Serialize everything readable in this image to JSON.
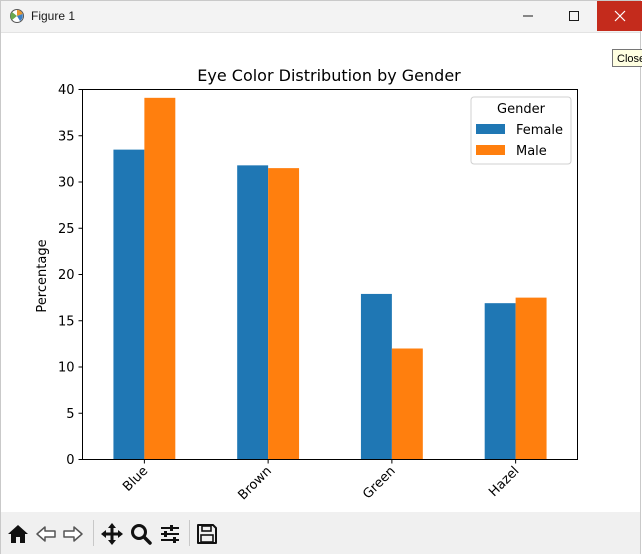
{
  "window": {
    "title": "Figure 1",
    "close_tooltip": "Close",
    "icons": {
      "app": "matplotlib-figure-icon",
      "minimize": "minimize-icon",
      "maximize": "maximize-icon",
      "close": "close-icon"
    }
  },
  "toolbar": {
    "tools": [
      {
        "name": "home",
        "icon": "home-icon"
      },
      {
        "name": "back",
        "icon": "back-arrow-icon"
      },
      {
        "name": "forward",
        "icon": "forward-arrow-icon"
      },
      {
        "name": "pan",
        "icon": "pan-move-icon"
      },
      {
        "name": "zoom",
        "icon": "zoom-magnifier-icon"
      },
      {
        "name": "configure",
        "icon": "configure-subplots-icon"
      },
      {
        "name": "save",
        "icon": "save-floppy-icon"
      }
    ]
  },
  "chart_data": {
    "type": "bar",
    "title": "Eye Color Distribution by Gender",
    "xlabel": "",
    "ylabel": "Percentage",
    "categories": [
      "Blue",
      "Brown",
      "Green",
      "Hazel"
    ],
    "series": [
      {
        "name": "Female",
        "color": "#1f77b4",
        "values": [
          33.5,
          31.8,
          17.9,
          16.9
        ]
      },
      {
        "name": "Male",
        "color": "#ff7f0e",
        "values": [
          39.1,
          31.5,
          12.0,
          17.5
        ]
      }
    ],
    "ylim": [
      0,
      40
    ],
    "yticks": [
      0,
      5,
      10,
      15,
      20,
      25,
      30,
      35,
      40
    ],
    "legend": {
      "title": "Gender",
      "location": "upper right"
    },
    "grid": false
  }
}
